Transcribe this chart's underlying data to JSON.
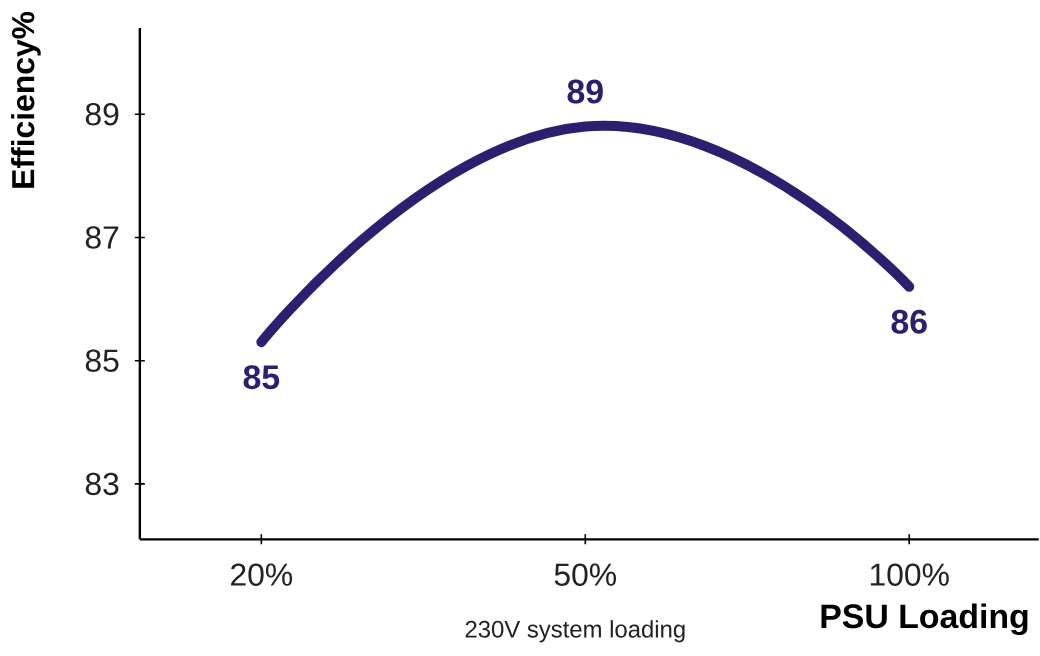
{
  "chart_data": {
    "type": "line",
    "xlabel": "PSU Loading",
    "ylabel": "Efficiency%",
    "categories": [
      "20%",
      "50%",
      "100%"
    ],
    "values": [
      85.3,
      88.8,
      86.2
    ],
    "value_labels": [
      "85",
      "89",
      "86"
    ],
    "color": "#2b2070",
    "ylim": [
      82.1,
      90.4
    ],
    "yticks": [
      83,
      85,
      87,
      89
    ],
    "grid": false,
    "marker": "none",
    "line_style": "solid",
    "annotations": [
      "230V system loading"
    ]
  }
}
